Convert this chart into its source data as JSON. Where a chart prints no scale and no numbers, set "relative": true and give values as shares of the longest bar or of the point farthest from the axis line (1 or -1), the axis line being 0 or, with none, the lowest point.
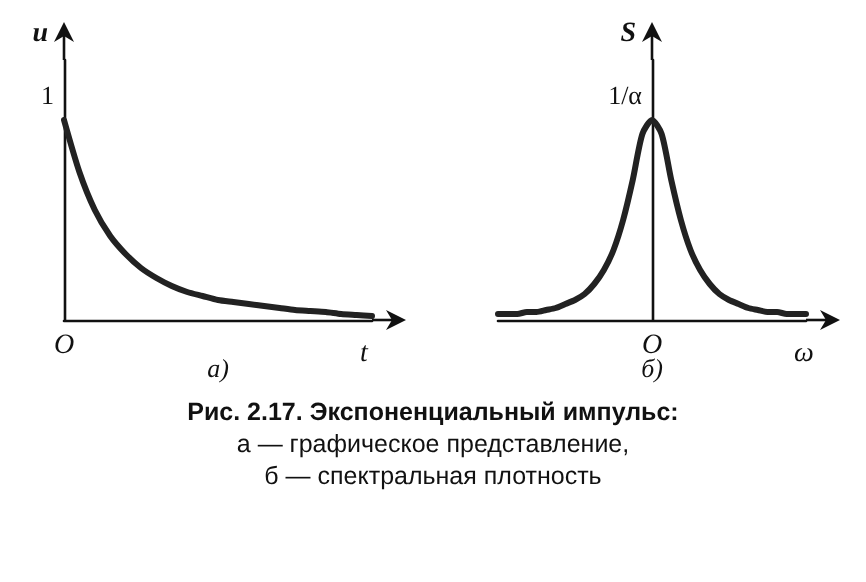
{
  "chart_data": [
    {
      "type": "line",
      "relative": true,
      "subtitle": "а)",
      "xlabel": "t",
      "ylabel": "u",
      "annotations": [
        "1",
        "O"
      ],
      "categories": [
        null,
        null,
        null,
        null,
        null,
        null,
        null,
        null,
        null,
        null,
        null,
        null,
        null,
        null,
        null,
        null,
        null,
        null,
        null,
        null,
        null
      ],
      "series": [
        {
          "color": "#222222",
          "values": [
            1,
            0.74,
            0.55,
            0.42,
            0.33,
            0.26,
            0.21,
            0.17,
            0.14,
            0.12,
            0.1,
            0.09,
            0.08,
            0.07,
            0.06,
            0.05,
            0.045,
            0.04,
            0.03,
            0.025,
            0.02
          ]
        }
      ]
    },
    {
      "type": "line",
      "relative": true,
      "subtitle": "б)",
      "xlabel": "ω",
      "ylabel": "S",
      "annotations": [
        "1/α",
        "O"
      ],
      "categories": [
        null,
        null,
        null,
        null,
        null,
        null,
        null,
        null,
        null,
        null,
        null,
        null,
        null,
        null,
        null,
        null,
        null,
        null,
        null,
        null,
        null,
        null,
        null,
        null,
        null,
        null,
        null,
        null,
        null,
        null,
        null,
        null,
        null
      ],
      "series": [
        {
          "color": "#222222",
          "values": [
            0.03,
            0.03,
            0.03,
            0.04,
            0.04,
            0.05,
            0.06,
            0.08,
            0.1,
            0.13,
            0.18,
            0.25,
            0.35,
            0.5,
            0.7,
            0.93,
            1,
            0.93,
            0.7,
            0.5,
            0.35,
            0.25,
            0.18,
            0.13,
            0.1,
            0.08,
            0.06,
            0.05,
            0.04,
            0.04,
            0.03,
            0.03,
            0.03
          ]
        }
      ]
    },
    {
      "type": "other",
      "title": "Рис. 2.17. Экспоненциальный импульс:",
      "annotations": [
        "а — графическое представление,",
        "б — спектральная плотность"
      ]
    }
  ]
}
